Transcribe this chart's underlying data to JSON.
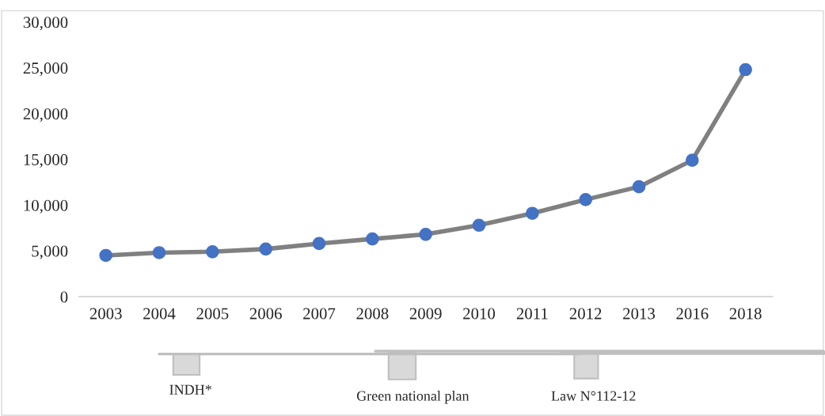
{
  "chart_data": {
    "type": "line",
    "categories": [
      "2003",
      "2004",
      "2005",
      "2006",
      "2007",
      "2008",
      "2009",
      "2010",
      "2011",
      "2012",
      "2013",
      "2016",
      "2018"
    ],
    "series": [
      {
        "color": "#808080",
        "colors": [
          "#4472c4",
          "#4472c4",
          "#4472c4",
          "#4472c4",
          "#4472c4",
          "#4472c4",
          "#4472c4",
          "#4472c4",
          "#4472c4",
          "#4472c4",
          "#4472c4",
          "#4472c4",
          "#4472c4"
        ],
        "values": [
          4500,
          4800,
          4900,
          5200,
          5800,
          6300,
          6800,
          7800,
          9100,
          10600,
          12000,
          14900,
          24800
        ]
      }
    ],
    "ylim": [
      0,
      30000
    ],
    "yticks": [
      {
        "value": 0,
        "label": "0"
      },
      {
        "value": 5000,
        "label": "5,000"
      },
      {
        "value": 10000,
        "label": "10,000"
      },
      {
        "value": 15000,
        "label": "15,000"
      },
      {
        "value": 20000,
        "label": "20,000"
      },
      {
        "value": 25000,
        "label": "25,000"
      },
      {
        "value": 30000,
        "label": "30,000"
      }
    ],
    "marker": "circle",
    "line_style": "solid",
    "grid": false,
    "legend": false,
    "annotations": [
      "INDH*",
      "Green national plan",
      "Law N°112-12"
    ]
  }
}
